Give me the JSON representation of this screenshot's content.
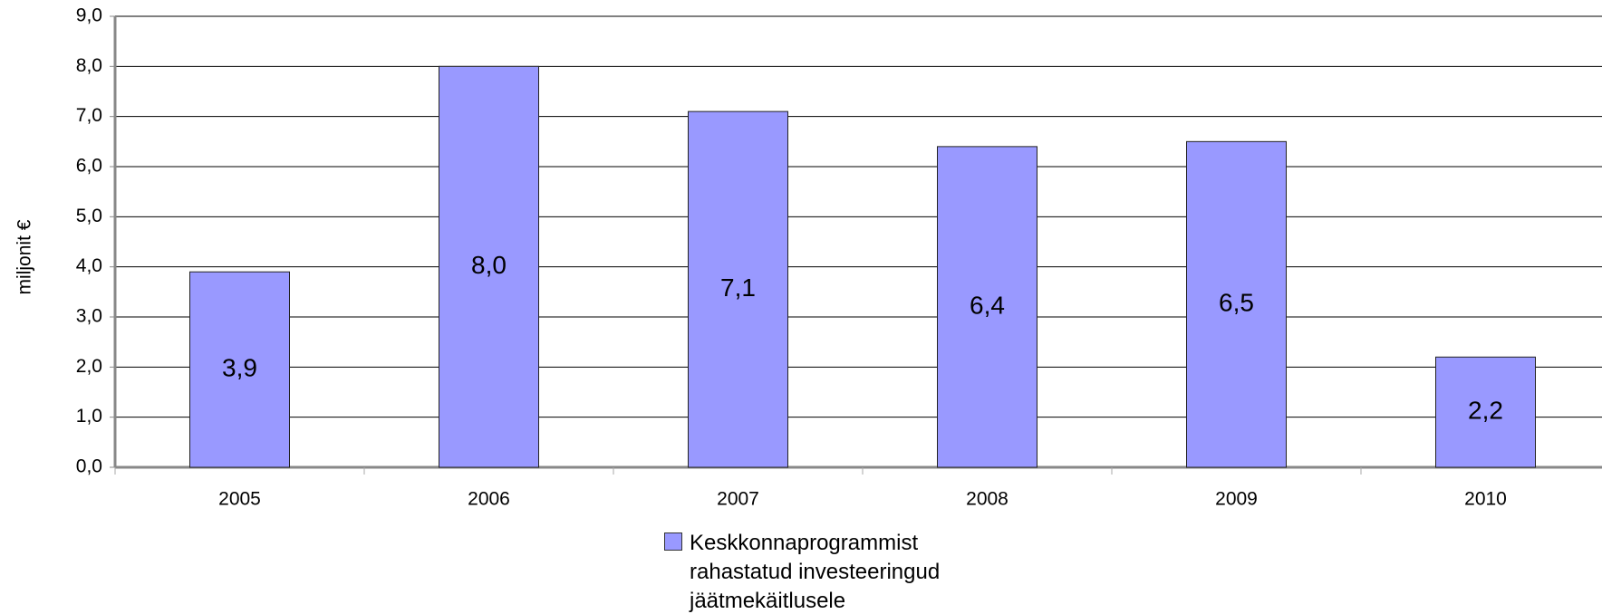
{
  "chart_data": {
    "type": "bar",
    "y_label": "miljonit €",
    "categories": [
      "2005",
      "2006",
      "2007",
      "2008",
      "2009",
      "2010"
    ],
    "series": [
      {
        "name": "Keskkonnaprogrammist rahastatud investeeringud jäätmekäitlusele",
        "color": "#9999ff",
        "values": [
          3.9,
          8.0,
          7.1,
          6.4,
          6.5,
          2.2
        ],
        "value_labels": [
          "3,9",
          "8,0",
          "7,1",
          "6,4",
          "6,5",
          "2,2"
        ]
      }
    ],
    "ylim": [
      0,
      9
    ],
    "yticks": [
      {
        "value": 0,
        "label": "0,0"
      },
      {
        "value": 1,
        "label": "1,0"
      },
      {
        "value": 2,
        "label": "2,0"
      },
      {
        "value": 3,
        "label": "3,0"
      },
      {
        "value": 4,
        "label": "4,0"
      },
      {
        "value": 5,
        "label": "5,0"
      },
      {
        "value": 6,
        "label": "6,0"
      },
      {
        "value": 7,
        "label": "7,0"
      },
      {
        "value": 8,
        "label": "8,0"
      },
      {
        "value": 9,
        "label": "9,0"
      }
    ],
    "grid": true,
    "legend": "bottom"
  }
}
